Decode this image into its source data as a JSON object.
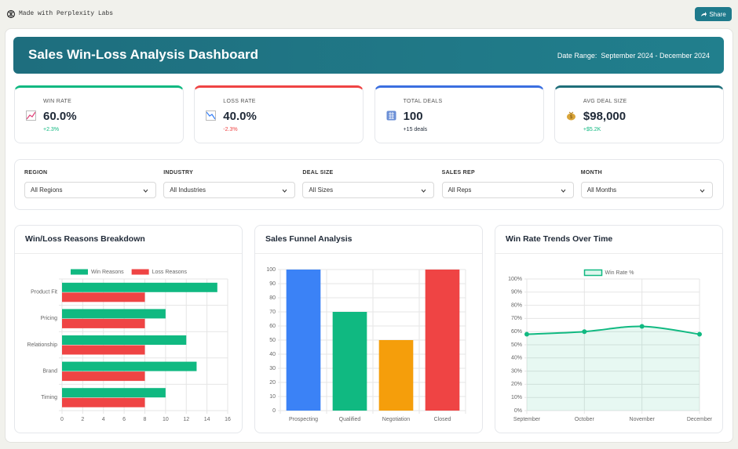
{
  "topbar": {
    "brand": "Made with Perplexity Labs",
    "share": "Share"
  },
  "header": {
    "title": "Sales Win-Loss Analysis Dashboard",
    "date_range": "Date Range:  September 2024 - December 2024"
  },
  "kpis": [
    {
      "label": "WIN RATE",
      "value": "60.0%",
      "change": "+2.3%",
      "color": "#10b981",
      "change_color": "#10b981"
    },
    {
      "label": "LOSS RATE",
      "value": "40.0%",
      "change": "-2.3%",
      "color": "#ef4444",
      "change_color": "#ef4444"
    },
    {
      "label": "TOTAL DEALS",
      "value": "100",
      "change": "+15 deals",
      "color": "#3b6fe0",
      "change_color": "#1f2937"
    },
    {
      "label": "AVG DEAL SIZE",
      "value": "$98,000",
      "change": "+$5.2K",
      "color": "#1f6f7a",
      "change_color": "#10b981"
    }
  ],
  "filters": [
    {
      "label": "REGION",
      "selected": "All Regions"
    },
    {
      "label": "INDUSTRY",
      "selected": "All Industries"
    },
    {
      "label": "DEAL SIZE",
      "selected": "All Sizes"
    },
    {
      "label": "SALES REP",
      "selected": "All Reps"
    },
    {
      "label": "MONTH",
      "selected": "All Months"
    }
  ],
  "chart_data": [
    {
      "type": "bar",
      "orientation": "horizontal",
      "title": "Win/Loss Reasons Breakdown",
      "categories": [
        "Product Fit",
        "Pricing",
        "Relationship",
        "Brand",
        "Timing"
      ],
      "series": [
        {
          "name": "Win Reasons",
          "color": "#10b981",
          "values": [
            15,
            10,
            12,
            13,
            10
          ]
        },
        {
          "name": "Loss Reasons",
          "color": "#ef4444",
          "values": [
            8,
            8,
            8,
            8,
            8
          ]
        }
      ],
      "xlim": [
        0,
        16
      ],
      "xticks": [
        0,
        2,
        4,
        6,
        8,
        10,
        12,
        14,
        16
      ],
      "grid": true,
      "legend": "top"
    },
    {
      "type": "bar",
      "title": "Sales Funnel Analysis",
      "categories": [
        "Prospecting",
        "Qualified",
        "Negotiation",
        "Closed"
      ],
      "values": [
        100,
        70,
        50,
        100
      ],
      "colors": [
        "#3b82f6",
        "#10b981",
        "#f59e0b",
        "#ef4444"
      ],
      "ylim": [
        0,
        100
      ],
      "yticks": [
        0,
        10,
        20,
        30,
        40,
        50,
        60,
        70,
        80,
        90,
        100
      ],
      "grid": true
    },
    {
      "type": "line",
      "title": "Win Rate Trends Over Time",
      "categories": [
        "September",
        "October",
        "November",
        "December"
      ],
      "series": [
        {
          "name": "Win Rate %",
          "color": "#10b981",
          "values": [
            58,
            60,
            64,
            58
          ]
        }
      ],
      "ylim": [
        0,
        100
      ],
      "yticks": [
        {
          "value": 0,
          "label": "0%"
        },
        {
          "value": 10,
          "label": "10%"
        },
        {
          "value": 20,
          "label": "20%"
        },
        {
          "value": 30,
          "label": "30%"
        },
        {
          "value": 40,
          "label": "40%"
        },
        {
          "value": 50,
          "label": "50%"
        },
        {
          "value": 60,
          "label": "60%"
        },
        {
          "value": 70,
          "label": "70%"
        },
        {
          "value": 80,
          "label": "80%"
        },
        {
          "value": 90,
          "label": "90%"
        },
        {
          "value": 100,
          "label": "100%"
        }
      ],
      "grid": true,
      "fill": true,
      "legend": "top"
    }
  ]
}
